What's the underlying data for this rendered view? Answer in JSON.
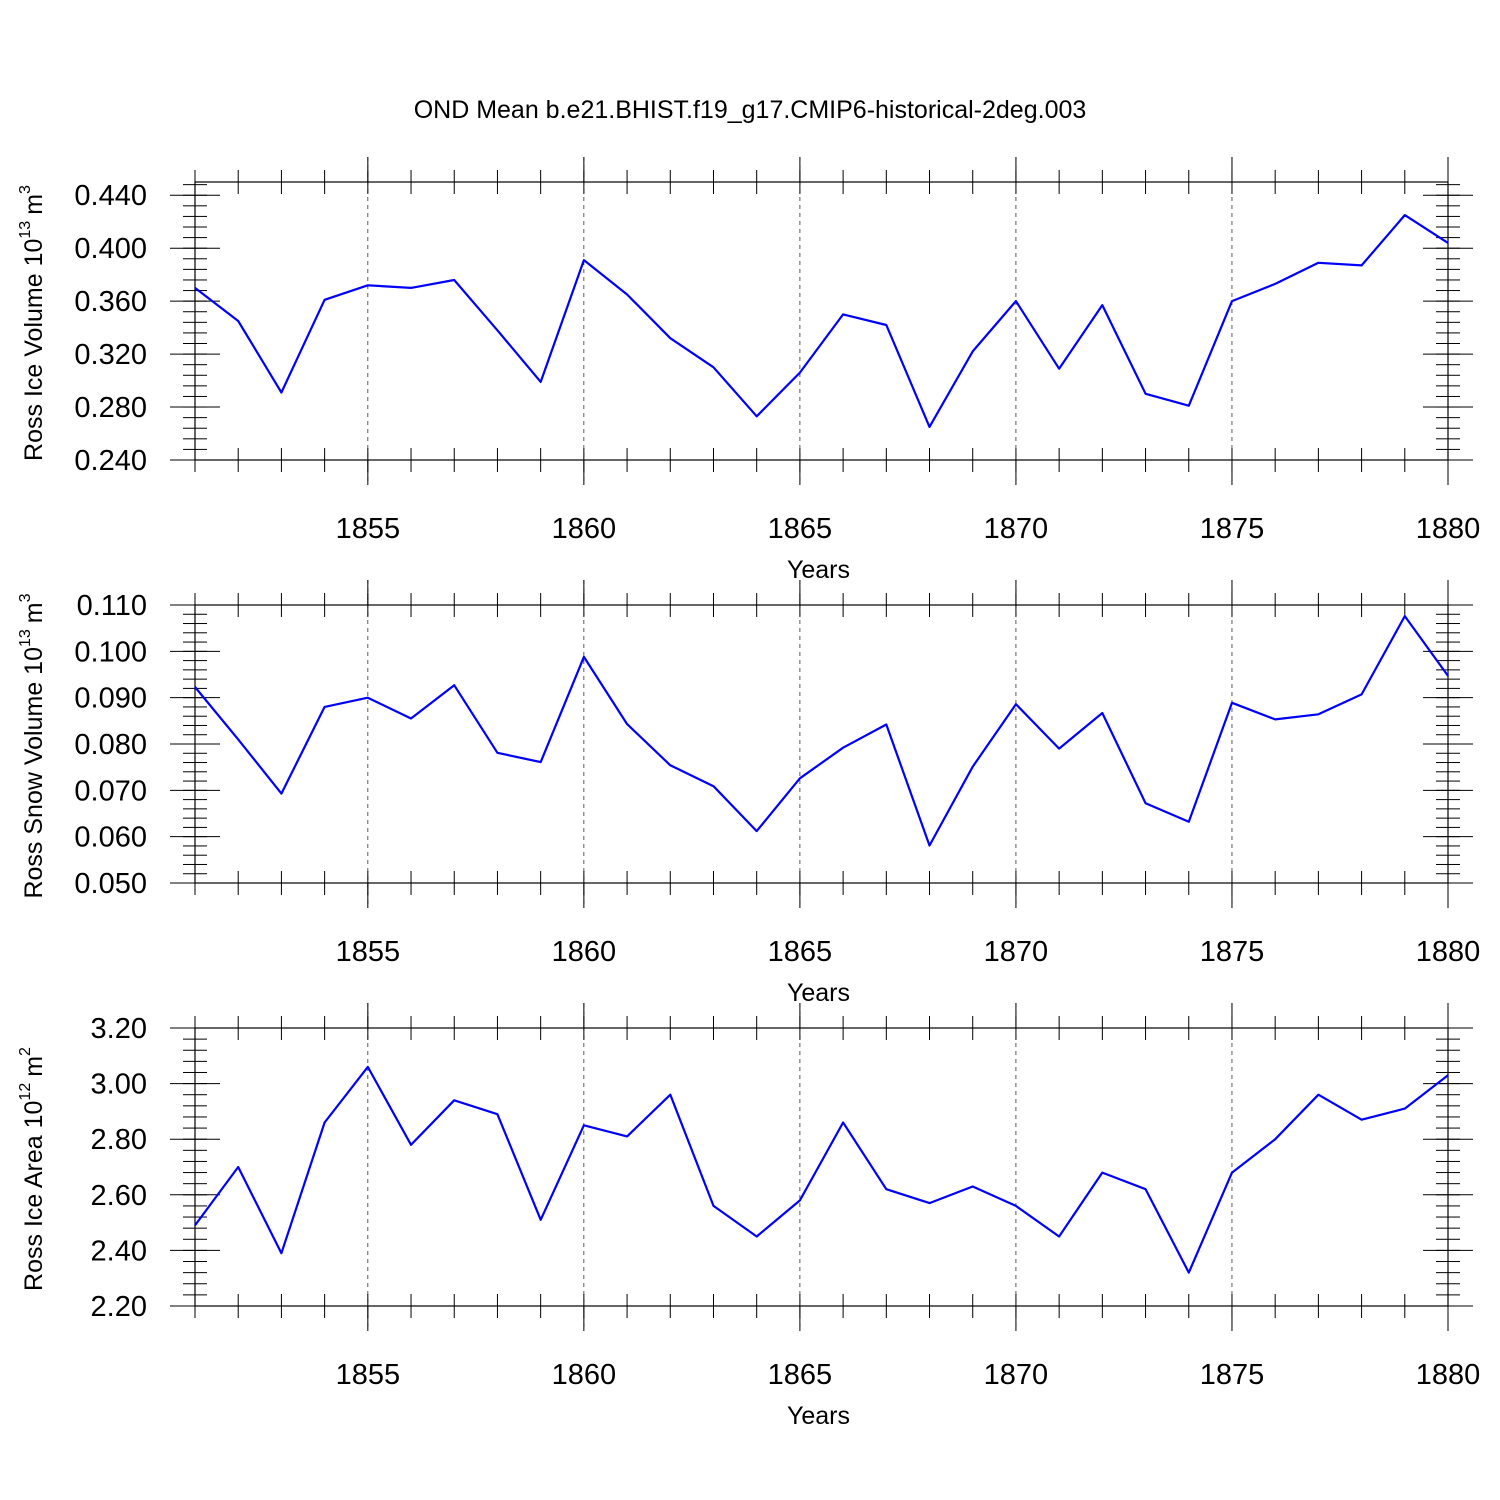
{
  "title": "OND Mean b.e21.BHIST.f19_g17.CMIP6-historical-2deg.003",
  "colors": {
    "line": "#0000ff"
  },
  "chart_data": [
    {
      "type": "line",
      "ylabel": {
        "text": "Ross Ice Volume 10",
        "exponent": "13",
        "unit": "m",
        "unit_exponent": "3"
      },
      "xlabel": "Years",
      "xlim": [
        1851,
        1880
      ],
      "ylim": [
        0.24,
        0.45
      ],
      "x_ticks": [
        1855,
        1860,
        1865,
        1870,
        1875,
        1880
      ],
      "y_ticks": [
        0.24,
        0.28,
        0.32,
        0.36,
        0.4,
        0.44
      ],
      "y_tick_labels": [
        "0.240",
        "0.280",
        "0.320",
        "0.360",
        "0.400",
        "0.440"
      ],
      "y_minor_step": 0.008,
      "grid": "dashed vertical at major x ticks",
      "x": [
        1851,
        1852,
        1853,
        1854,
        1855,
        1856,
        1857,
        1858,
        1859,
        1860,
        1861,
        1862,
        1863,
        1864,
        1865,
        1866,
        1867,
        1868,
        1869,
        1870,
        1871,
        1872,
        1873,
        1874,
        1875,
        1876,
        1877,
        1878,
        1879,
        1880
      ],
      "values": [
        0.37,
        0.345,
        0.291,
        0.361,
        0.372,
        0.37,
        0.376,
        0.338,
        0.299,
        0.391,
        0.365,
        0.332,
        0.31,
        0.273,
        0.306,
        0.35,
        0.342,
        0.265,
        0.322,
        0.36,
        0.309,
        0.357,
        0.29,
        0.281,
        0.36,
        0.373,
        0.389,
        0.387,
        0.425,
        0.404
      ]
    },
    {
      "type": "line",
      "ylabel": {
        "text": "Ross Snow Volume 10",
        "exponent": "13",
        "unit": "m",
        "unit_exponent": "3"
      },
      "xlabel": "Years",
      "xlim": [
        1851,
        1880
      ],
      "ylim": [
        0.05,
        0.11
      ],
      "x_ticks": [
        1855,
        1860,
        1865,
        1870,
        1875,
        1880
      ],
      "y_ticks": [
        0.05,
        0.06,
        0.07,
        0.08,
        0.09,
        0.1,
        0.11
      ],
      "y_tick_labels": [
        "0.050",
        "0.060",
        "0.070",
        "0.080",
        "0.090",
        "0.100",
        "0.110"
      ],
      "y_minor_step": 0.002,
      "grid": "dashed vertical at major x ticks",
      "x": [
        1851,
        1852,
        1853,
        1854,
        1855,
        1856,
        1857,
        1858,
        1859,
        1860,
        1861,
        1862,
        1863,
        1864,
        1865,
        1866,
        1867,
        1868,
        1869,
        1870,
        1871,
        1872,
        1873,
        1874,
        1875,
        1876,
        1877,
        1878,
        1879,
        1880
      ],
      "values": [
        0.0923,
        0.081,
        0.0693,
        0.088,
        0.09,
        0.0855,
        0.0927,
        0.0781,
        0.0761,
        0.0988,
        0.0843,
        0.0754,
        0.0709,
        0.0612,
        0.0726,
        0.0792,
        0.0842,
        0.0581,
        0.0751,
        0.0886,
        0.079,
        0.0867,
        0.0672,
        0.0632,
        0.0889,
        0.0853,
        0.0864,
        0.0907,
        0.1076,
        0.0947
      ]
    },
    {
      "type": "line",
      "ylabel": {
        "text": "Ross Ice Area 10",
        "exponent": "12",
        "unit": "m",
        "unit_exponent": "2"
      },
      "xlabel": "Years",
      "xlim": [
        1851,
        1880
      ],
      "ylim": [
        2.2,
        3.2
      ],
      "x_ticks": [
        1855,
        1860,
        1865,
        1870,
        1875,
        1880
      ],
      "y_ticks": [
        2.2,
        2.4,
        2.6,
        2.8,
        3.0,
        3.2
      ],
      "y_tick_labels": [
        "2.20",
        "2.40",
        "2.60",
        "2.80",
        "3.00",
        "3.20"
      ],
      "y_minor_step": 0.04,
      "grid": "dashed vertical at major x ticks",
      "x": [
        1851,
        1852,
        1853,
        1854,
        1855,
        1856,
        1857,
        1858,
        1859,
        1860,
        1861,
        1862,
        1863,
        1864,
        1865,
        1866,
        1867,
        1868,
        1869,
        1870,
        1871,
        1872,
        1873,
        1874,
        1875,
        1876,
        1877,
        1878,
        1879,
        1880
      ],
      "values": [
        2.49,
        2.7,
        2.39,
        2.86,
        3.06,
        2.78,
        2.94,
        2.89,
        2.51,
        2.85,
        2.81,
        2.96,
        2.56,
        2.45,
        2.58,
        2.86,
        2.62,
        2.57,
        2.63,
        2.56,
        2.45,
        2.68,
        2.62,
        2.32,
        2.68,
        2.8,
        2.96,
        2.87,
        2.91,
        3.03
      ]
    }
  ]
}
